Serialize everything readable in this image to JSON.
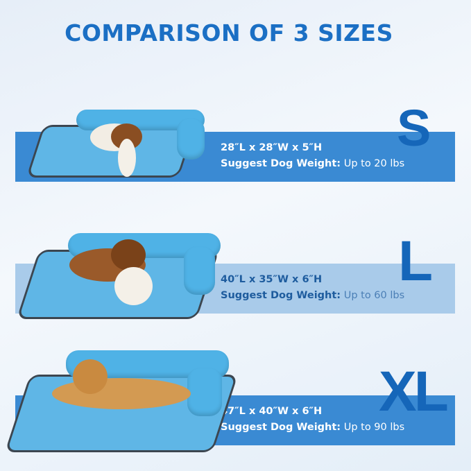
{
  "title": "COMPARISON OF 3 SIZES",
  "sizes": [
    {
      "label": "S",
      "dimensions": "28″L x 28″W x 5″H",
      "weight_label": "Suggest Dog Weight:",
      "weight_value": "Up to 20 lbs",
      "band_color": "#3a8ad3"
    },
    {
      "label": "L",
      "dimensions": "40″L x 35″W x 6″H",
      "weight_label": "Suggest Dog Weight:",
      "weight_value": "Up to 60 lbs",
      "band_color": "#a9cbea"
    },
    {
      "label": "XL",
      "dimensions": "47″L x 40″W x 6″H",
      "weight_label": "Suggest Dog Weight:",
      "weight_value": "Up to 90 lbs",
      "band_color": "#3a8ad3"
    }
  ],
  "colors": {
    "title": "#1b6fc4",
    "size_letter": "#1566b9",
    "bed": "#5fb6e6"
  }
}
